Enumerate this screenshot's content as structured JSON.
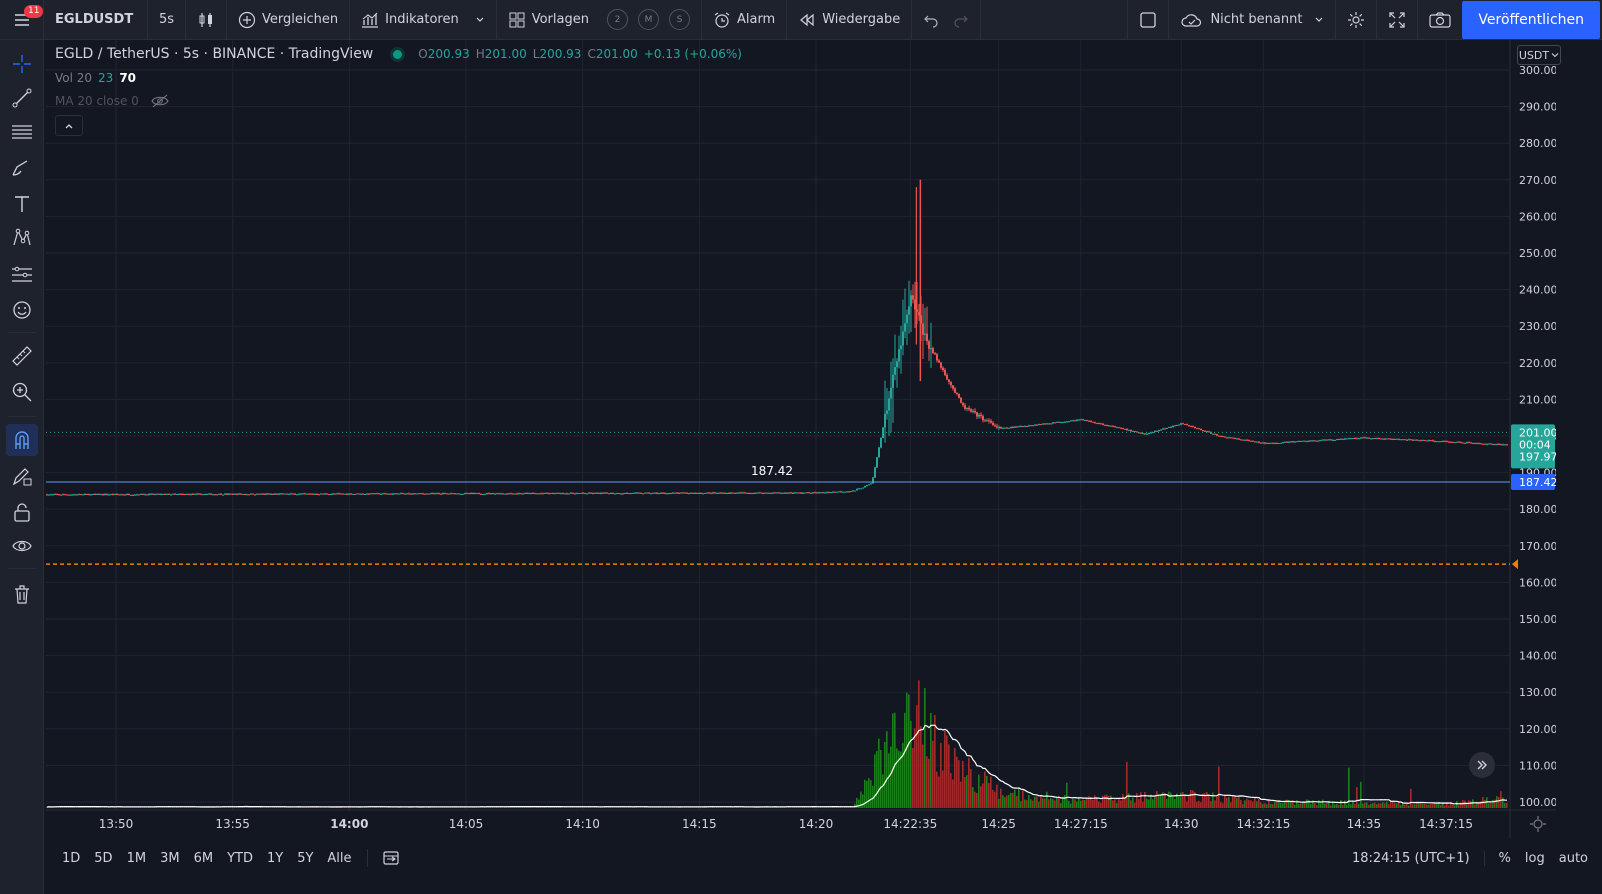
{
  "toolbar": {
    "notifications": "11",
    "symbol": "EGLDUSDT",
    "interval": "5s",
    "compare": "Vergleichen",
    "indicators": "Indikatoren",
    "templates": "Vorlagen",
    "template_slots": [
      "2",
      "M",
      "S"
    ],
    "alert": "Alarm",
    "replay": "Wiedergabe",
    "layout_name": "Nicht benannt",
    "publish": "Veröffentlichen"
  },
  "legend": {
    "title": "EGLD / TetherUS · 5s · BINANCE · TradingView",
    "open_label": "O",
    "open": "200.93",
    "high_label": "H",
    "high": "201.00",
    "low_label": "L",
    "low": "200.93",
    "close_label": "C",
    "close": "201.00",
    "change": "+0.13 (+0.06%)"
  },
  "volume_legend": {
    "name": "Vol 20",
    "value1": "23",
    "value2": "70"
  },
  "ma_legend": {
    "name": "MA 20 close 0"
  },
  "currency": "USDT",
  "price_axis": {
    "ticks": [
      "300.00",
      "290.00",
      "280.00",
      "270.00",
      "260.00",
      "250.00",
      "240.00",
      "230.00",
      "220.00",
      "210.00",
      "200.00",
      "190.00",
      "180.00",
      "170.00",
      "160.00",
      "150.00",
      "140.00",
      "130.00",
      "120.00",
      "110.00",
      "100.00"
    ],
    "last_price": "201.00",
    "countdown": "00:04",
    "prev_price": "197.97",
    "line_price": "187.42"
  },
  "time_axis": {
    "ticks": [
      {
        "label": "13:50",
        "bold": false
      },
      {
        "label": "13:55",
        "bold": false
      },
      {
        "label": "14:00",
        "bold": true
      },
      {
        "label": "14:05",
        "bold": false
      },
      {
        "label": "14:10",
        "bold": false
      },
      {
        "label": "14:15",
        "bold": false
      },
      {
        "label": "14:20",
        "bold": false
      },
      {
        "label": "14:22:35",
        "bold": false
      },
      {
        "label": "14:25",
        "bold": false
      },
      {
        "label": "14:27:15",
        "bold": false
      },
      {
        "label": "14:30",
        "bold": false
      },
      {
        "label": "14:32:15",
        "bold": false
      },
      {
        "label": "14:35",
        "bold": false
      },
      {
        "label": "14:37:15",
        "bold": false
      }
    ]
  },
  "horizontal_line": {
    "label": "187.42",
    "color": "#5b9cf6"
  },
  "alert_line": {
    "color": "#f57c00"
  },
  "chart_data": {
    "type": "candlestick",
    "symbol": "EGLD / TetherUS",
    "interval": "5s",
    "x_range": [
      "13:47",
      "14:39"
    ],
    "ylim": [
      100,
      300
    ],
    "price_path": [
      {
        "t": "13:47",
        "p": 184.0
      },
      {
        "t": "14:20",
        "p": 184.5
      },
      {
        "t": "14:21",
        "p": 185.0
      },
      {
        "t": "14:21:30",
        "p": 187.0
      },
      {
        "t": "14:22",
        "p": 212.0
      },
      {
        "t": "14:22:35",
        "p": 238.0
      },
      {
        "t": "14:23",
        "p": 226.0
      },
      {
        "t": "14:23:30",
        "p": 217.0
      },
      {
        "t": "14:24",
        "p": 208.0
      },
      {
        "t": "14:25",
        "p": 202.0
      },
      {
        "t": "14:27:15",
        "p": 204.5
      },
      {
        "t": "14:29",
        "p": 200.5
      },
      {
        "t": "14:30",
        "p": 203.5
      },
      {
        "t": "14:31",
        "p": 200.0
      },
      {
        "t": "14:32:15",
        "p": 198.0
      },
      {
        "t": "14:35",
        "p": 199.5
      },
      {
        "t": "14:37:15",
        "p": 198.5
      },
      {
        "t": "14:39",
        "p": 197.5
      }
    ],
    "spike_high": 270.0,
    "last_close": 201.0,
    "horizontal_line_price": 187.42,
    "alert_price": 165.0,
    "volume_profile": [
      {
        "t": "13:47",
        "v": 0.01
      },
      {
        "t": "14:21",
        "v": 0.01
      },
      {
        "t": "14:21:30",
        "v": 0.25
      },
      {
        "t": "14:22",
        "v": 0.55
      },
      {
        "t": "14:22:35",
        "v": 0.85
      },
      {
        "t": "14:23",
        "v": 0.6
      },
      {
        "t": "14:24",
        "v": 0.3
      },
      {
        "t": "14:25",
        "v": 0.12
      },
      {
        "t": "14:27:15",
        "v": 0.06
      },
      {
        "t": "14:30",
        "v": 0.1
      },
      {
        "t": "14:32:15",
        "v": 0.05
      },
      {
        "t": "14:37:15",
        "v": 0.03
      },
      {
        "t": "14:39",
        "v": 0.08
      }
    ]
  },
  "bottom": {
    "ranges": [
      "1D",
      "5D",
      "1M",
      "3M",
      "6M",
      "YTD",
      "1Y",
      "5Y",
      "Alle"
    ],
    "clock": "18:24:15 (UTC+1)",
    "percent": "%",
    "log": "log",
    "auto": "auto"
  },
  "colors": {
    "up": "#26a69a",
    "down": "#ef5350",
    "vol_up": "#1b7e1b",
    "vol_down": "#a32a2a",
    "accent": "#2962ff"
  }
}
